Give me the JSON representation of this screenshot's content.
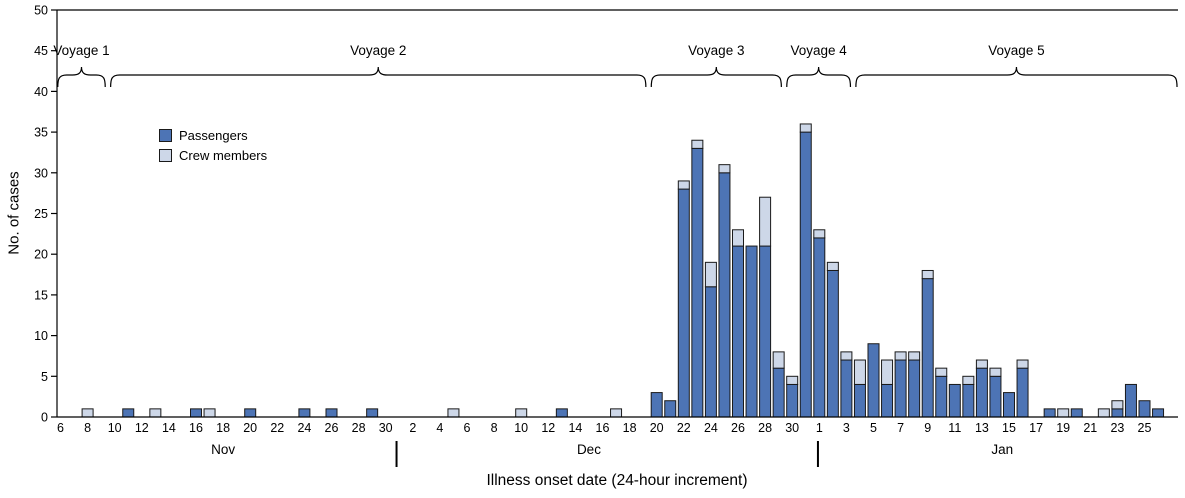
{
  "chart_data": {
    "type": "bar",
    "stacked": true,
    "title": "",
    "xlabel": "Illness onset date (24-hour increment)",
    "ylabel": "No. of cases",
    "ylim": [
      0,
      50
    ],
    "grid": false,
    "y_ticks": [
      0,
      5,
      10,
      15,
      20,
      25,
      30,
      35,
      40,
      45,
      50
    ],
    "legend": {
      "position": "upper-left-inside",
      "entries": [
        {
          "label": "Passengers",
          "color": "#4d74b5"
        },
        {
          "label": "Crew members",
          "color": "#cdd7e8"
        }
      ]
    },
    "colors": {
      "passengers": "#4d74b5",
      "crew": "#cdd7e8",
      "bar_border": "#1a1a1a",
      "axis": "#000000"
    },
    "x_axis": {
      "start_date": "Nov 6",
      "end_date": "Jan 26",
      "months": [
        {
          "label": "Nov",
          "center_day": 12
        },
        {
          "label": "Dec",
          "center_day": 39
        },
        {
          "label": "Jan",
          "center_day": 69.5
        }
      ],
      "separator_days": [
        24.8,
        55.9
      ],
      "ticks": [
        {
          "day": 0,
          "label": "6"
        },
        {
          "day": 2,
          "label": "8"
        },
        {
          "day": 4,
          "label": "10"
        },
        {
          "day": 6,
          "label": "12"
        },
        {
          "day": 8,
          "label": "14"
        },
        {
          "day": 10,
          "label": "16"
        },
        {
          "day": 12,
          "label": "18"
        },
        {
          "day": 14,
          "label": "20"
        },
        {
          "day": 16,
          "label": "22"
        },
        {
          "day": 18,
          "label": "24"
        },
        {
          "day": 20,
          "label": "26"
        },
        {
          "day": 22,
          "label": "28"
        },
        {
          "day": 24,
          "label": "30"
        },
        {
          "day": 26,
          "label": "2"
        },
        {
          "day": 28,
          "label": "4"
        },
        {
          "day": 30,
          "label": "6"
        },
        {
          "day": 32,
          "label": "8"
        },
        {
          "day": 34,
          "label": "10"
        },
        {
          "day": 36,
          "label": "12"
        },
        {
          "day": 38,
          "label": "14"
        },
        {
          "day": 40,
          "label": "16"
        },
        {
          "day": 42,
          "label": "18"
        },
        {
          "day": 44,
          "label": "20"
        },
        {
          "day": 46,
          "label": "22"
        },
        {
          "day": 48,
          "label": "24"
        },
        {
          "day": 50,
          "label": "26"
        },
        {
          "day": 52,
          "label": "28"
        },
        {
          "day": 54,
          "label": "30"
        },
        {
          "day": 56,
          "label": "1"
        },
        {
          "day": 58,
          "label": "3"
        },
        {
          "day": 60,
          "label": "5"
        },
        {
          "day": 62,
          "label": "7"
        },
        {
          "day": 64,
          "label": "9"
        },
        {
          "day": 66,
          "label": "11"
        },
        {
          "day": 68,
          "label": "13"
        },
        {
          "day": 70,
          "label": "15"
        },
        {
          "day": 72,
          "label": "17"
        },
        {
          "day": 74,
          "label": "19"
        },
        {
          "day": 76,
          "label": "21"
        },
        {
          "day": 78,
          "label": "23"
        },
        {
          "day": 80,
          "label": "25"
        }
      ]
    },
    "voyages": [
      {
        "label": "Voyage 1",
        "start_day": -0.2,
        "end_day": 3.3
      },
      {
        "label": "Voyage 2",
        "start_day": 3.7,
        "end_day": 43.2
      },
      {
        "label": "Voyage 3",
        "start_day": 43.6,
        "end_day": 53.2
      },
      {
        "label": "Voyage 4",
        "start_day": 53.6,
        "end_day": 58.3
      },
      {
        "label": "Voyage 5",
        "start_day": 58.7,
        "end_day": 82.4
      }
    ],
    "bars": [
      {
        "date": "Nov 8",
        "day": 2,
        "passengers": 0,
        "crew": 1
      },
      {
        "date": "Nov 11",
        "day": 5,
        "passengers": 1,
        "crew": 0
      },
      {
        "date": "Nov 13",
        "day": 7,
        "passengers": 0,
        "crew": 1
      },
      {
        "date": "Nov 16",
        "day": 10,
        "passengers": 1,
        "crew": 0
      },
      {
        "date": "Nov 17",
        "day": 11,
        "passengers": 0,
        "crew": 1
      },
      {
        "date": "Nov 20",
        "day": 14,
        "passengers": 1,
        "crew": 0
      },
      {
        "date": "Nov 24",
        "day": 18,
        "passengers": 1,
        "crew": 0
      },
      {
        "date": "Nov 26",
        "day": 20,
        "passengers": 1,
        "crew": 0
      },
      {
        "date": "Nov 29",
        "day": 23,
        "passengers": 1,
        "crew": 0
      },
      {
        "date": "Dec 5",
        "day": 29,
        "passengers": 0,
        "crew": 1
      },
      {
        "date": "Dec 10",
        "day": 34,
        "passengers": 0,
        "crew": 1
      },
      {
        "date": "Dec 13",
        "day": 37,
        "passengers": 1,
        "crew": 0
      },
      {
        "date": "Dec 17",
        "day": 41,
        "passengers": 0,
        "crew": 1
      },
      {
        "date": "Dec 20",
        "day": 44,
        "passengers": 3,
        "crew": 0
      },
      {
        "date": "Dec 21",
        "day": 45,
        "passengers": 2,
        "crew": 0
      },
      {
        "date": "Dec 22",
        "day": 46,
        "passengers": 28,
        "crew": 1
      },
      {
        "date": "Dec 23",
        "day": 47,
        "passengers": 33,
        "crew": 1
      },
      {
        "date": "Dec 24",
        "day": 48,
        "passengers": 16,
        "crew": 3
      },
      {
        "date": "Dec 25",
        "day": 49,
        "passengers": 30,
        "crew": 1
      },
      {
        "date": "Dec 26",
        "day": 50,
        "passengers": 21,
        "crew": 2
      },
      {
        "date": "Dec 27",
        "day": 51,
        "passengers": 21,
        "crew": 0
      },
      {
        "date": "Dec 28",
        "day": 52,
        "passengers": 21,
        "crew": 6
      },
      {
        "date": "Dec 29",
        "day": 53,
        "passengers": 6,
        "crew": 2
      },
      {
        "date": "Dec 30",
        "day": 54,
        "passengers": 4,
        "crew": 1
      },
      {
        "date": "Dec 31",
        "day": 55,
        "passengers": 35,
        "crew": 1
      },
      {
        "date": "Jan 1",
        "day": 56,
        "passengers": 22,
        "crew": 1
      },
      {
        "date": "Jan 2",
        "day": 57,
        "passengers": 18,
        "crew": 1
      },
      {
        "date": "Jan 3",
        "day": 58,
        "passengers": 7,
        "crew": 1
      },
      {
        "date": "Jan 4",
        "day": 59,
        "passengers": 4,
        "crew": 3
      },
      {
        "date": "Jan 5",
        "day": 60,
        "passengers": 9,
        "crew": 0
      },
      {
        "date": "Jan 6",
        "day": 61,
        "passengers": 4,
        "crew": 3
      },
      {
        "date": "Jan 7",
        "day": 62,
        "passengers": 7,
        "crew": 1
      },
      {
        "date": "Jan 8",
        "day": 63,
        "passengers": 7,
        "crew": 1
      },
      {
        "date": "Jan 9",
        "day": 64,
        "passengers": 17,
        "crew": 1
      },
      {
        "date": "Jan 10",
        "day": 65,
        "passengers": 5,
        "crew": 1
      },
      {
        "date": "Jan 11",
        "day": 66,
        "passengers": 4,
        "crew": 0
      },
      {
        "date": "Jan 12",
        "day": 67,
        "passengers": 4,
        "crew": 1
      },
      {
        "date": "Jan 13",
        "day": 68,
        "passengers": 6,
        "crew": 1
      },
      {
        "date": "Jan 14",
        "day": 69,
        "passengers": 5,
        "crew": 1
      },
      {
        "date": "Jan 15",
        "day": 70,
        "passengers": 3,
        "crew": 0
      },
      {
        "date": "Jan 16",
        "day": 71,
        "passengers": 6,
        "crew": 1
      },
      {
        "date": "Jan 18",
        "day": 73,
        "passengers": 1,
        "crew": 0
      },
      {
        "date": "Jan 19",
        "day": 74,
        "passengers": 0,
        "crew": 1
      },
      {
        "date": "Jan 20",
        "day": 75,
        "passengers": 1,
        "crew": 0
      },
      {
        "date": "Jan 22",
        "day": 77,
        "passengers": 0,
        "crew": 1
      },
      {
        "date": "Jan 23",
        "day": 78,
        "passengers": 1,
        "crew": 1
      },
      {
        "date": "Jan 24",
        "day": 79,
        "passengers": 4,
        "crew": 0
      },
      {
        "date": "Jan 25",
        "day": 80,
        "passengers": 2,
        "crew": 0
      },
      {
        "date": "Jan 26",
        "day": 81,
        "passengers": 1,
        "crew": 0
      }
    ]
  }
}
